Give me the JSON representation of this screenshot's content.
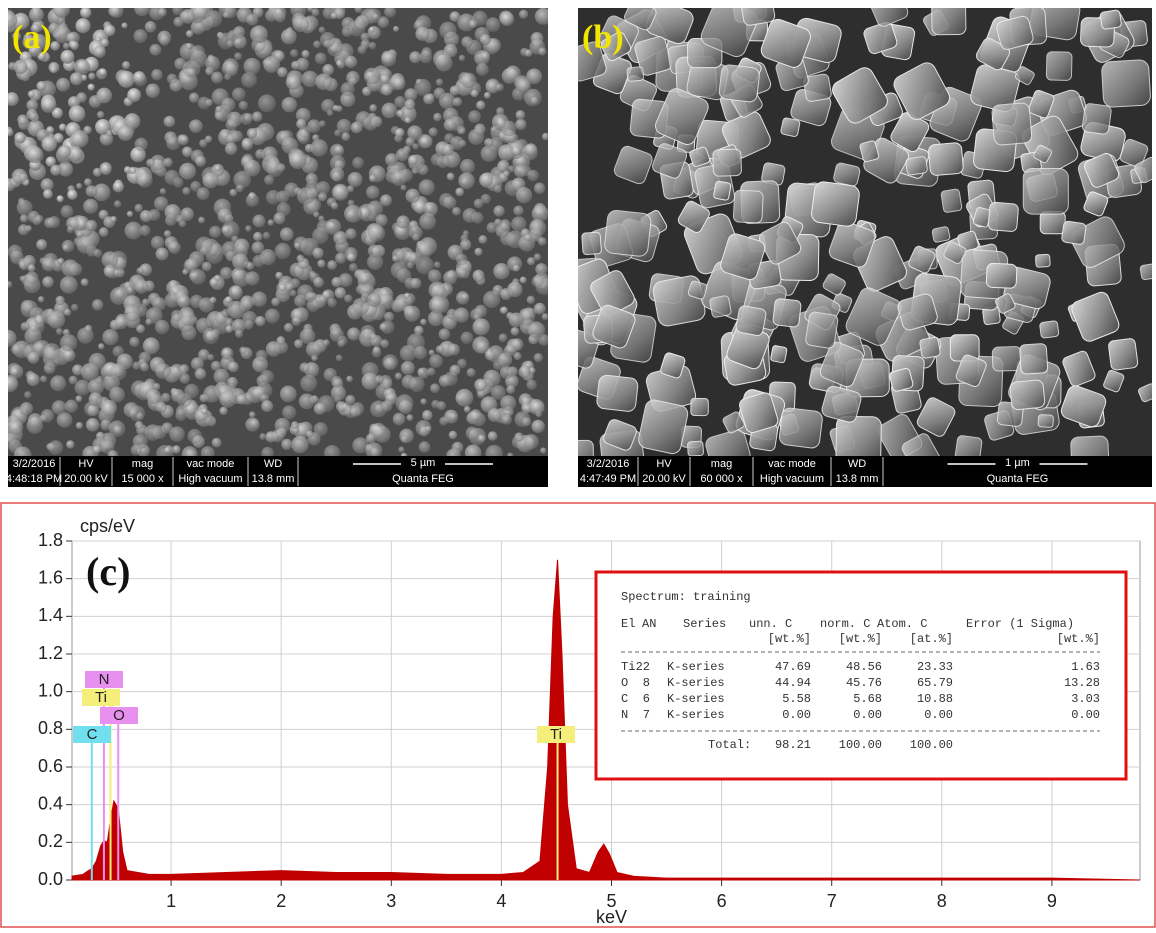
{
  "sem_panels": [
    {
      "label": "(a)",
      "date": "3/2/2016",
      "time": "4:48:18 PM",
      "hv_label": "HV",
      "hv": "20.00 kV",
      "mag_label": "mag",
      "mag": "15 000 x",
      "vac_label": "vac mode",
      "vac": "High vacuum",
      "wd_label": "WD",
      "wd": "13.8 mm",
      "scale": "5 µm",
      "instrument": "Quanta FEG"
    },
    {
      "label": "(b)",
      "date": "3/2/2016",
      "time": "4:47:49 PM",
      "hv_label": "HV",
      "hv": "20.00 kV",
      "mag_label": "mag",
      "mag": "60 000 x",
      "vac_label": "vac mode",
      "vac": "High vacuum",
      "wd_label": "WD",
      "wd": "13.8 mm",
      "scale": "1 µm",
      "instrument": "Quanta FEG"
    }
  ],
  "chart_data": {
    "type": "area",
    "panel_label": "(c)",
    "y_label": "cps/eV",
    "x_label": "keV",
    "xlim": [
      0.1,
      9.8
    ],
    "xticks": [
      1,
      2,
      3,
      4,
      5,
      6,
      7,
      8,
      9
    ],
    "ylim": [
      0,
      1.8
    ],
    "yticks": [
      {
        "value": 0,
        "label": "0.0"
      },
      0.2,
      0.4,
      0.6,
      0.8,
      {
        "value": 1,
        "label": "1.0"
      },
      1.2,
      1.4,
      1.6,
      1.8
    ],
    "grid": true,
    "x": [
      0.1,
      0.2,
      0.25,
      0.28,
      0.32,
      0.36,
      0.39,
      0.42,
      0.45,
      0.48,
      0.52,
      0.56,
      0.6,
      0.7,
      0.8,
      1.0,
      1.5,
      2.0,
      2.5,
      3.0,
      3.5,
      4.0,
      4.2,
      4.35,
      4.42,
      4.47,
      4.51,
      4.55,
      4.6,
      4.68,
      4.8,
      4.88,
      4.93,
      4.98,
      5.05,
      5.2,
      5.5,
      6,
      7,
      8,
      9,
      9.8
    ],
    "series": [
      {
        "color": "#c00000",
        "values": [
          0.02,
          0.03,
          0.05,
          0.06,
          0.1,
          0.18,
          0.21,
          0.2,
          0.32,
          0.42,
          0.38,
          0.15,
          0.05,
          0.04,
          0.03,
          0.03,
          0.04,
          0.05,
          0.04,
          0.04,
          0.03,
          0.03,
          0.04,
          0.1,
          0.6,
          1.4,
          1.7,
          1.2,
          0.4,
          0.06,
          0.04,
          0.15,
          0.19,
          0.14,
          0.04,
          0.02,
          0.01,
          0.01,
          0.01,
          0.01,
          0.01,
          0
        ]
      }
    ],
    "element_markers": [
      {
        "label": "N",
        "x": 0.39,
        "color": "#e890f0"
      },
      {
        "label": "Ti",
        "x": 0.45,
        "color": "#f5ee7a"
      },
      {
        "label": "O",
        "x": 0.52,
        "color": "#e890f0"
      },
      {
        "label": "C",
        "x": 0.28,
        "color": "#70e0ee"
      },
      {
        "label": "Ti",
        "x": 4.51,
        "color": "#f5ee7a"
      }
    ],
    "results_table": {
      "title": "Spectrum: training",
      "columns": [
        "El",
        "AN",
        "Series",
        "unn. C",
        "norm. C",
        "Atom. C",
        "Error (1 Sigma)"
      ],
      "units": [
        "[wt.%]",
        "[wt.%]",
        "[at.%]",
        "[wt.%]"
      ],
      "rows": [
        [
          "Ti",
          "22",
          "K-series",
          "47.69",
          "48.56",
          "23.33",
          "1.63"
        ],
        [
          "O",
          "8",
          "K-series",
          "44.94",
          "45.76",
          "65.79",
          "13.28"
        ],
        [
          "C",
          "6",
          "K-series",
          "5.58",
          "5.68",
          "10.88",
          "3.03"
        ],
        [
          "N",
          "7",
          "K-series",
          "0.00",
          "0.00",
          "0.00",
          "0.00"
        ]
      ],
      "total": {
        "label": "Total:",
        "values": [
          "98.21",
          "100.00",
          "100.00"
        ]
      }
    }
  }
}
